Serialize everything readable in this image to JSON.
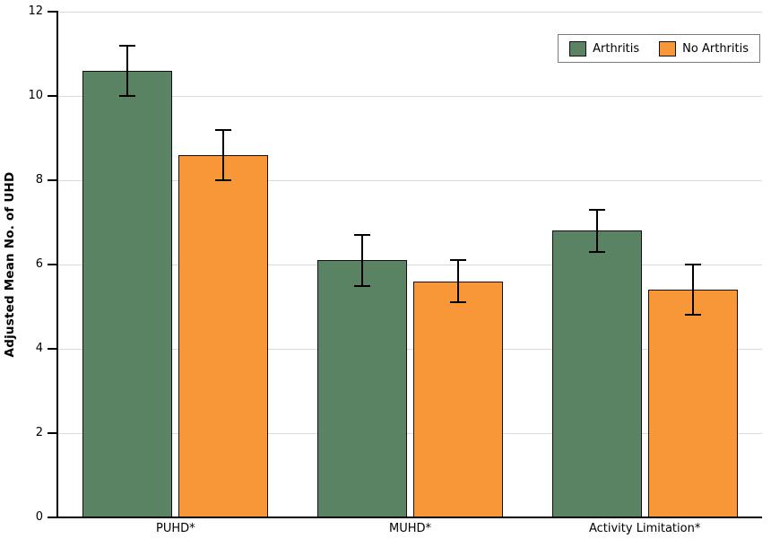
{
  "chart_data": {
    "type": "bar",
    "title": "",
    "xlabel": "",
    "ylabel": "Adjusted Mean No. of UHD",
    "categories": [
      "PUHD*",
      "MUHD*",
      "Activity Limitation*"
    ],
    "series": [
      {
        "name": "Arthritis",
        "color": "#5a8364",
        "values": [
          10.6,
          6.1,
          6.8
        ],
        "errors": [
          0.6,
          0.6,
          0.5
        ]
      },
      {
        "name": "No Arthritis",
        "color": "#f79737",
        "values": [
          8.6,
          5.6,
          5.4
        ],
        "errors": [
          0.6,
          0.5,
          0.6
        ]
      }
    ],
    "ylim": [
      0,
      12
    ],
    "yticks": [
      0,
      2,
      4,
      6,
      8,
      10,
      12
    ],
    "grid": "horizontal-light-gray",
    "gridline_color": "#d9d9d9",
    "error_bars": true,
    "legend_position": "top-right"
  }
}
